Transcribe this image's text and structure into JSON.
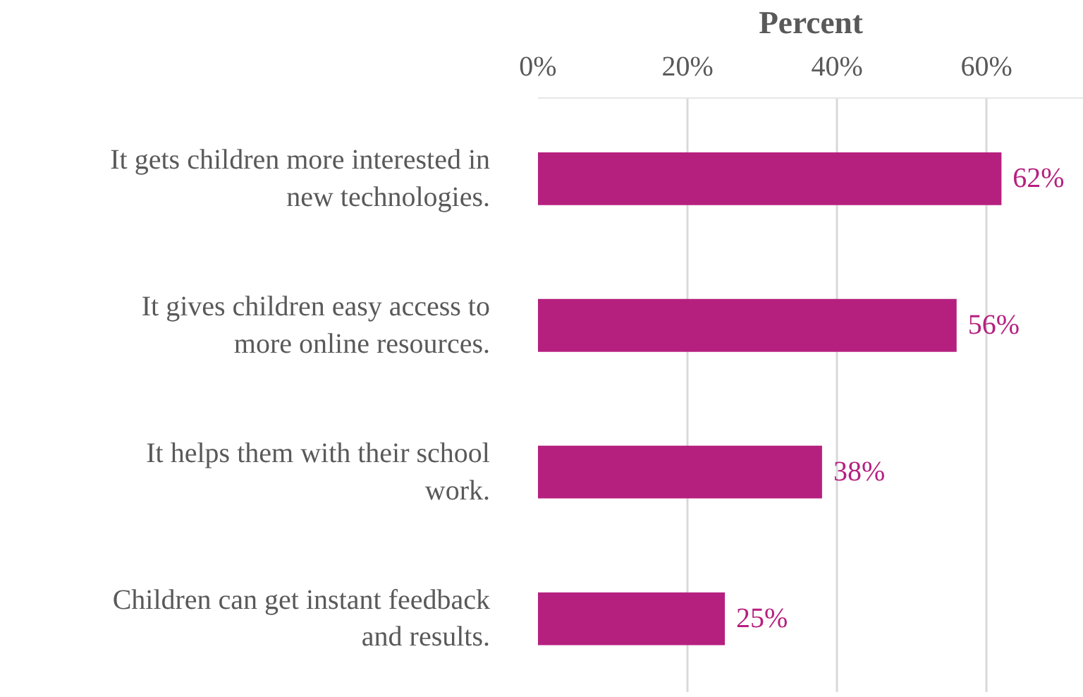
{
  "chart_data": {
    "type": "bar",
    "orientation": "horizontal",
    "xlabel": "Percent",
    "categories": [
      "It gets children more interested in new technologies.",
      "It gives children easy access to more online resources.",
      "It helps them with their school work.",
      "Children can get instant feedback and results."
    ],
    "values": [
      62,
      56,
      38,
      25
    ],
    "value_labels": [
      "62%",
      "56%",
      "38%",
      "25%"
    ],
    "color": "#b5207f",
    "xlim": [
      0,
      73
    ],
    "xticks": [
      {
        "value": 0,
        "label": "0%"
      },
      {
        "value": 20,
        "label": "20%"
      },
      {
        "value": 40,
        "label": "40%"
      },
      {
        "value": 60,
        "label": "60%"
      }
    ],
    "grid": "x"
  }
}
